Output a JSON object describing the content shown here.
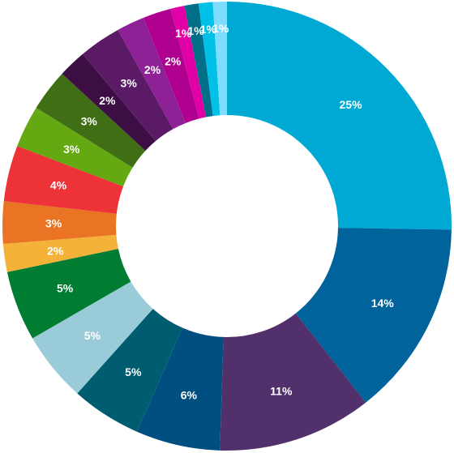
{
  "chart_data": {
    "type": "pie",
    "variant": "donut",
    "title": "",
    "legend": "none",
    "slices": [
      {
        "value": 25,
        "label": "25%",
        "color": "#00a9d3"
      },
      {
        "value": 14,
        "label": "14%",
        "color": "#00639c"
      },
      {
        "value": 11,
        "label": "11%",
        "color": "#52306b"
      },
      {
        "value": 6,
        "label": "6%",
        "color": "#004f80"
      },
      {
        "value": 5,
        "label": "5%",
        "color": "#005d70"
      },
      {
        "value": 5,
        "label": "5%",
        "color": "#9acbd8"
      },
      {
        "value": 5,
        "label": "5%",
        "color": "#007d32"
      },
      {
        "value": 2,
        "label": "2%",
        "color": "#f5b238"
      },
      {
        "value": 3,
        "label": "3%",
        "color": "#ea7424"
      },
      {
        "value": 4,
        "label": "4%",
        "color": "#ed3238"
      },
      {
        "value": 3,
        "label": "3%",
        "color": "#64a812"
      },
      {
        "value": 3,
        "label": "3%",
        "color": "#3f6e15"
      },
      {
        "value": 2,
        "label": "2%",
        "color": "#3c0e43"
      },
      {
        "value": 3,
        "label": "3%",
        "color": "#5b1a66"
      },
      {
        "value": 2,
        "label": "2%",
        "color": "#8e2196"
      },
      {
        "value": 2,
        "label": "2%",
        "color": "#b0008f"
      },
      {
        "value": 1,
        "label": "1%",
        "color": "#e000a6"
      },
      {
        "value": 1,
        "label": "1%",
        "color": "#006f87"
      },
      {
        "value": 1,
        "label": "1%",
        "color": "#00c0e8"
      },
      {
        "value": 1,
        "label": "1%",
        "color": "#7fdcff"
      }
    ]
  }
}
